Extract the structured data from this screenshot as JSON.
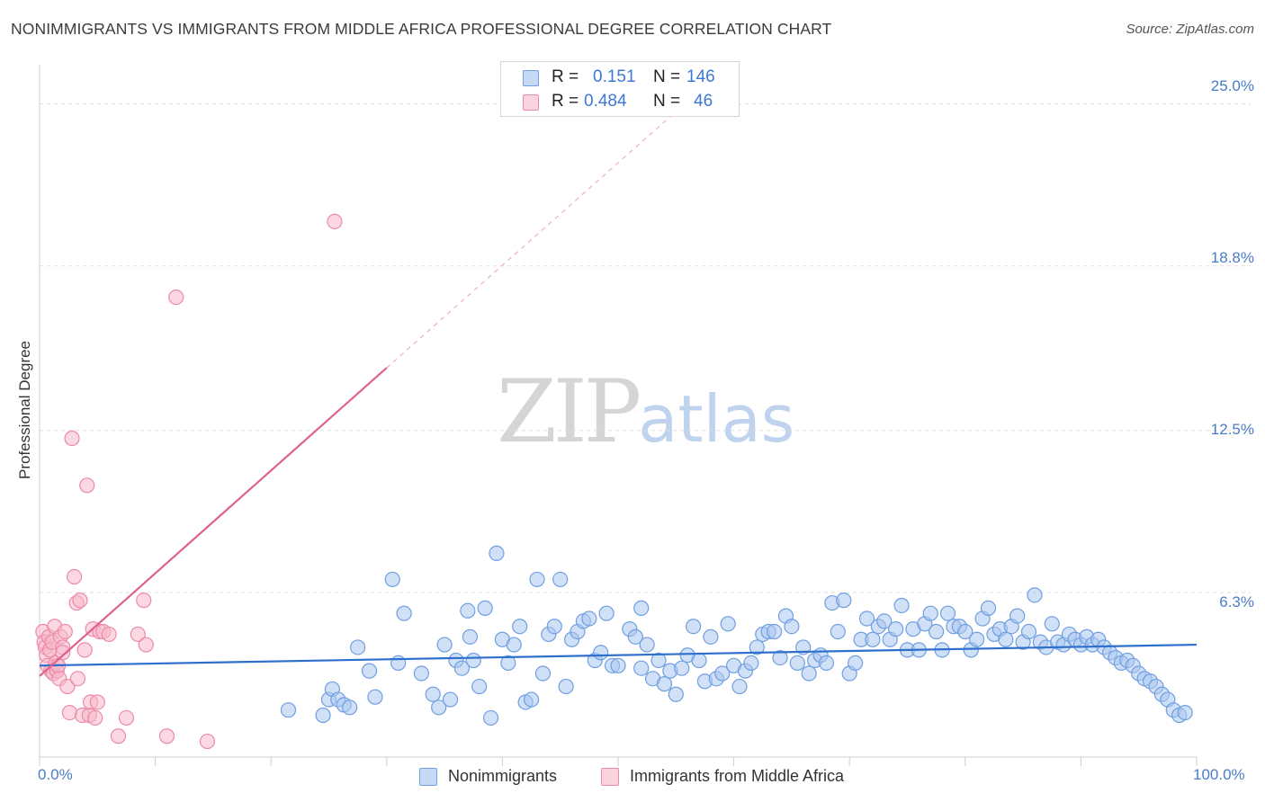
{
  "header": {
    "title": "NONIMMIGRANTS VS IMMIGRANTS FROM MIDDLE AFRICA PROFESSIONAL DEGREE CORRELATION CHART",
    "source": "Source: ZipAtlas.com"
  },
  "watermark": {
    "part1": "ZIP",
    "part2": "atlas"
  },
  "legend": {
    "rows": [
      {
        "r_label": "R =",
        "r_value": "0.151",
        "n_label": "N =",
        "n_value": "146",
        "color": "#a9c6f0"
      },
      {
        "r_label": "R =",
        "r_value": "0.484",
        "n_label": "N =",
        "n_value": "46",
        "color": "#f7b8ca"
      }
    ]
  },
  "chart_data": {
    "type": "scatter",
    "title": "NONIMMIGRANTS VS IMMIGRANTS FROM MIDDLE AFRICA PROFESSIONAL DEGREE CORRELATION CHART",
    "ylabel": "Professional Degree",
    "xlabel": "",
    "xlim": [
      0,
      100
    ],
    "ylim": [
      0,
      26.5
    ],
    "x_tick_labels": [
      "0.0%",
      "100.0%"
    ],
    "y_ticks": [
      6.3,
      12.5,
      18.8,
      25.0
    ],
    "y_tick_labels": [
      "6.3%",
      "12.5%",
      "18.8%",
      "25.0%"
    ],
    "grid": true,
    "legend_position": "bottom-center",
    "series": [
      {
        "name": "Nonimmigrants",
        "color": "#6f9fe0",
        "fill": "#a9c6f0",
        "line_color": "#2f6fcc",
        "trend": {
          "x": [
            0,
            100
          ],
          "y": [
            3.5,
            4.3
          ]
        },
        "points": [
          [
            21.5,
            1.8
          ],
          [
            24.5,
            1.6
          ],
          [
            25.0,
            2.2
          ],
          [
            25.3,
            2.6
          ],
          [
            25.8,
            2.2
          ],
          [
            26.3,
            2.0
          ],
          [
            26.8,
            1.9
          ],
          [
            27.5,
            4.2
          ],
          [
            28.5,
            3.3
          ],
          [
            29.0,
            2.3
          ],
          [
            30.5,
            6.8
          ],
          [
            31.0,
            3.6
          ],
          [
            31.5,
            5.5
          ],
          [
            33.0,
            3.2
          ],
          [
            34.0,
            2.4
          ],
          [
            34.5,
            1.9
          ],
          [
            35.0,
            4.3
          ],
          [
            35.5,
            2.2
          ],
          [
            36.0,
            3.7
          ],
          [
            36.5,
            3.4
          ],
          [
            37.0,
            5.6
          ],
          [
            37.2,
            4.6
          ],
          [
            37.5,
            3.7
          ],
          [
            38.0,
            2.7
          ],
          [
            38.5,
            5.7
          ],
          [
            39.0,
            1.5
          ],
          [
            39.5,
            7.8
          ],
          [
            40.0,
            4.5
          ],
          [
            40.5,
            3.6
          ],
          [
            41.0,
            4.3
          ],
          [
            41.5,
            5.0
          ],
          [
            42.0,
            2.1
          ],
          [
            42.5,
            2.2
          ],
          [
            43.0,
            6.8
          ],
          [
            43.5,
            3.2
          ],
          [
            44.0,
            4.7
          ],
          [
            44.5,
            5.0
          ],
          [
            45.0,
            6.8
          ],
          [
            45.5,
            2.7
          ],
          [
            46.0,
            4.5
          ],
          [
            46.5,
            4.8
          ],
          [
            47.0,
            5.2
          ],
          [
            47.5,
            5.3
          ],
          [
            48.0,
            3.7
          ],
          [
            48.5,
            4.0
          ],
          [
            49.0,
            5.5
          ],
          [
            49.5,
            3.5
          ],
          [
            50.0,
            3.5
          ],
          [
            51.0,
            4.9
          ],
          [
            51.5,
            4.6
          ],
          [
            52.0,
            3.4
          ],
          [
            52.5,
            4.3
          ],
          [
            53.0,
            3.0
          ],
          [
            53.5,
            3.7
          ],
          [
            54.0,
            2.8
          ],
          [
            54.5,
            3.3
          ],
          [
            55.0,
            2.4
          ],
          [
            55.5,
            3.4
          ],
          [
            56.0,
            3.9
          ],
          [
            56.5,
            5.0
          ],
          [
            57.0,
            3.7
          ],
          [
            57.5,
            2.9
          ],
          [
            58.0,
            4.6
          ],
          [
            58.5,
            3.0
          ],
          [
            59.0,
            3.2
          ],
          [
            59.5,
            5.1
          ],
          [
            60.0,
            3.5
          ],
          [
            60.5,
            2.7
          ],
          [
            61.0,
            3.3
          ],
          [
            61.5,
            3.6
          ],
          [
            62.0,
            4.2
          ],
          [
            62.5,
            4.7
          ],
          [
            63.0,
            4.8
          ],
          [
            63.5,
            4.8
          ],
          [
            64.0,
            3.8
          ],
          [
            64.5,
            5.4
          ],
          [
            65.0,
            5.0
          ],
          [
            65.5,
            3.6
          ],
          [
            66.0,
            4.2
          ],
          [
            66.5,
            3.2
          ],
          [
            67.0,
            3.7
          ],
          [
            67.5,
            3.9
          ],
          [
            68.0,
            3.6
          ],
          [
            68.5,
            5.9
          ],
          [
            69.0,
            4.8
          ],
          [
            69.5,
            6.0
          ],
          [
            70.0,
            3.2
          ],
          [
            70.5,
            3.6
          ],
          [
            71.0,
            4.5
          ],
          [
            71.5,
            5.3
          ],
          [
            72.0,
            4.5
          ],
          [
            72.5,
            5.0
          ],
          [
            73.0,
            5.2
          ],
          [
            73.5,
            4.5
          ],
          [
            74.0,
            4.9
          ],
          [
            74.5,
            5.8
          ],
          [
            75.0,
            4.1
          ],
          [
            75.5,
            4.9
          ],
          [
            76.0,
            4.1
          ],
          [
            76.5,
            5.1
          ],
          [
            77.0,
            5.5
          ],
          [
            77.5,
            4.8
          ],
          [
            78.0,
            4.1
          ],
          [
            78.5,
            5.5
          ],
          [
            79.0,
            5.0
          ],
          [
            79.5,
            5.0
          ],
          [
            80.0,
            4.8
          ],
          [
            80.5,
            4.1
          ],
          [
            81.0,
            4.5
          ],
          [
            81.5,
            5.3
          ],
          [
            82.0,
            5.7
          ],
          [
            82.5,
            4.7
          ],
          [
            83.0,
            4.9
          ],
          [
            83.5,
            4.5
          ],
          [
            84.0,
            5.0
          ],
          [
            84.5,
            5.4
          ],
          [
            85.0,
            4.4
          ],
          [
            85.5,
            4.8
          ],
          [
            86.0,
            6.2
          ],
          [
            86.5,
            4.4
          ],
          [
            87.0,
            4.2
          ],
          [
            87.5,
            5.1
          ],
          [
            88.0,
            4.4
          ],
          [
            88.5,
            4.3
          ],
          [
            89.0,
            4.7
          ],
          [
            89.5,
            4.5
          ],
          [
            90.0,
            4.3
          ],
          [
            90.5,
            4.6
          ],
          [
            91.0,
            4.3
          ],
          [
            91.5,
            4.5
          ],
          [
            92.0,
            4.2
          ],
          [
            92.5,
            4.0
          ],
          [
            93.0,
            3.8
          ],
          [
            93.5,
            3.6
          ],
          [
            94.0,
            3.7
          ],
          [
            94.5,
            3.5
          ],
          [
            95.0,
            3.2
          ],
          [
            95.5,
            3.0
          ],
          [
            96.0,
            2.9
          ],
          [
            96.5,
            2.7
          ],
          [
            97.0,
            2.4
          ],
          [
            97.5,
            2.2
          ],
          [
            98.0,
            1.8
          ],
          [
            98.5,
            1.6
          ],
          [
            99.0,
            1.7
          ],
          [
            52.0,
            5.7
          ]
        ]
      },
      {
        "name": "Immigrants from Middle Africa",
        "color": "#ec8aa8",
        "fill": "#f7b8ca",
        "line_color": "#e0608e",
        "trend": {
          "x": [
            0,
            30
          ],
          "y": [
            3.1,
            14.9
          ]
        },
        "trend_extension": {
          "x": [
            30,
            56
          ],
          "y": [
            14.9,
            25.1
          ]
        },
        "points": [
          [
            0.3,
            4.8
          ],
          [
            0.4,
            4.4
          ],
          [
            0.5,
            4.2
          ],
          [
            0.6,
            3.9
          ],
          [
            0.7,
            3.5
          ],
          [
            0.8,
            4.6
          ],
          [
            0.9,
            4.1
          ],
          [
            1.0,
            3.3
          ],
          [
            1.1,
            4.4
          ],
          [
            1.2,
            3.2
          ],
          [
            1.3,
            5.0
          ],
          [
            1.4,
            3.6
          ],
          [
            1.5,
            3.3
          ],
          [
            1.6,
            3.5
          ],
          [
            1.7,
            3.0
          ],
          [
            1.8,
            4.6
          ],
          [
            2.0,
            4.2
          ],
          [
            2.2,
            4.8
          ],
          [
            2.4,
            2.7
          ],
          [
            2.6,
            1.7
          ],
          [
            2.8,
            12.2
          ],
          [
            3.0,
            6.9
          ],
          [
            3.2,
            5.9
          ],
          [
            3.3,
            3.0
          ],
          [
            3.5,
            6.0
          ],
          [
            3.7,
            1.6
          ],
          [
            3.9,
            4.1
          ],
          [
            4.1,
            10.4
          ],
          [
            4.3,
            1.6
          ],
          [
            4.4,
            2.1
          ],
          [
            4.6,
            4.9
          ],
          [
            4.8,
            1.5
          ],
          [
            5.0,
            2.1
          ],
          [
            5.2,
            4.8
          ],
          [
            5.5,
            4.8
          ],
          [
            6.0,
            4.7
          ],
          [
            6.8,
            0.8
          ],
          [
            7.5,
            1.5
          ],
          [
            8.5,
            4.7
          ],
          [
            9.0,
            6.0
          ],
          [
            9.2,
            4.3
          ],
          [
            11.0,
            0.8
          ],
          [
            11.8,
            17.6
          ],
          [
            14.5,
            0.6
          ],
          [
            25.5,
            20.5
          ],
          [
            2.0,
            4.0
          ]
        ]
      }
    ]
  },
  "bottom_legend": {
    "items": [
      {
        "label": "Nonimmigrants",
        "color": "#a9c6f0"
      },
      {
        "label": "Immigrants from Middle Africa",
        "color": "#f7b8ca"
      }
    ]
  }
}
